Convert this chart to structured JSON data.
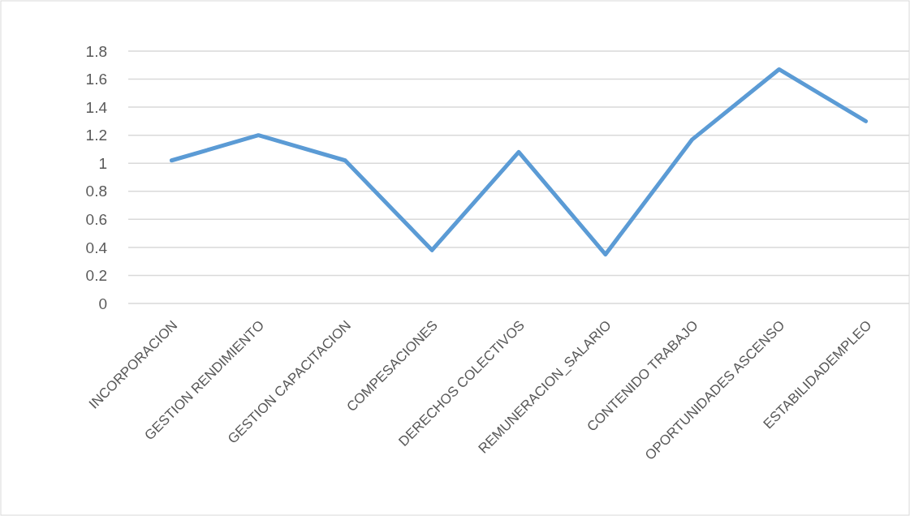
{
  "chart_data": {
    "type": "line",
    "categories": [
      "INCORPORACION",
      "GESTION RENDIMIENTO",
      "GESTION CAPACITACION",
      "COMPESACIONES",
      "DERECHOS COLECTIVOS",
      "REMUNERACION_SALARIO",
      "CONTENIDO TRABAJO",
      "OPORTUNIDADES ASCENSO",
      "ESTABILIDADEMPLEO"
    ],
    "series": [
      {
        "color": "#5b9bd5",
        "values": [
          1.02,
          1.2,
          1.02,
          0.38,
          1.08,
          0.35,
          1.17,
          1.67,
          1.3
        ]
      }
    ],
    "ylim": [
      0,
      1.8
    ],
    "yticks": [
      0,
      0.2,
      0.4,
      0.6,
      0.8,
      1,
      1.2,
      1.4,
      1.6,
      1.8
    ],
    "grid": "y",
    "marker": "none",
    "line_style": "solid"
  }
}
